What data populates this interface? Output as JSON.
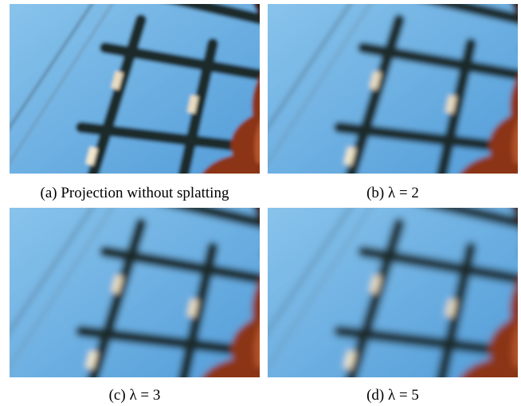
{
  "figure": {
    "panels": [
      {
        "caption": "(a) Projection without splatting"
      },
      {
        "caption": "(b) λ = 2"
      },
      {
        "caption": "(c) λ = 3"
      },
      {
        "caption": "(d) λ = 5"
      }
    ]
  }
}
